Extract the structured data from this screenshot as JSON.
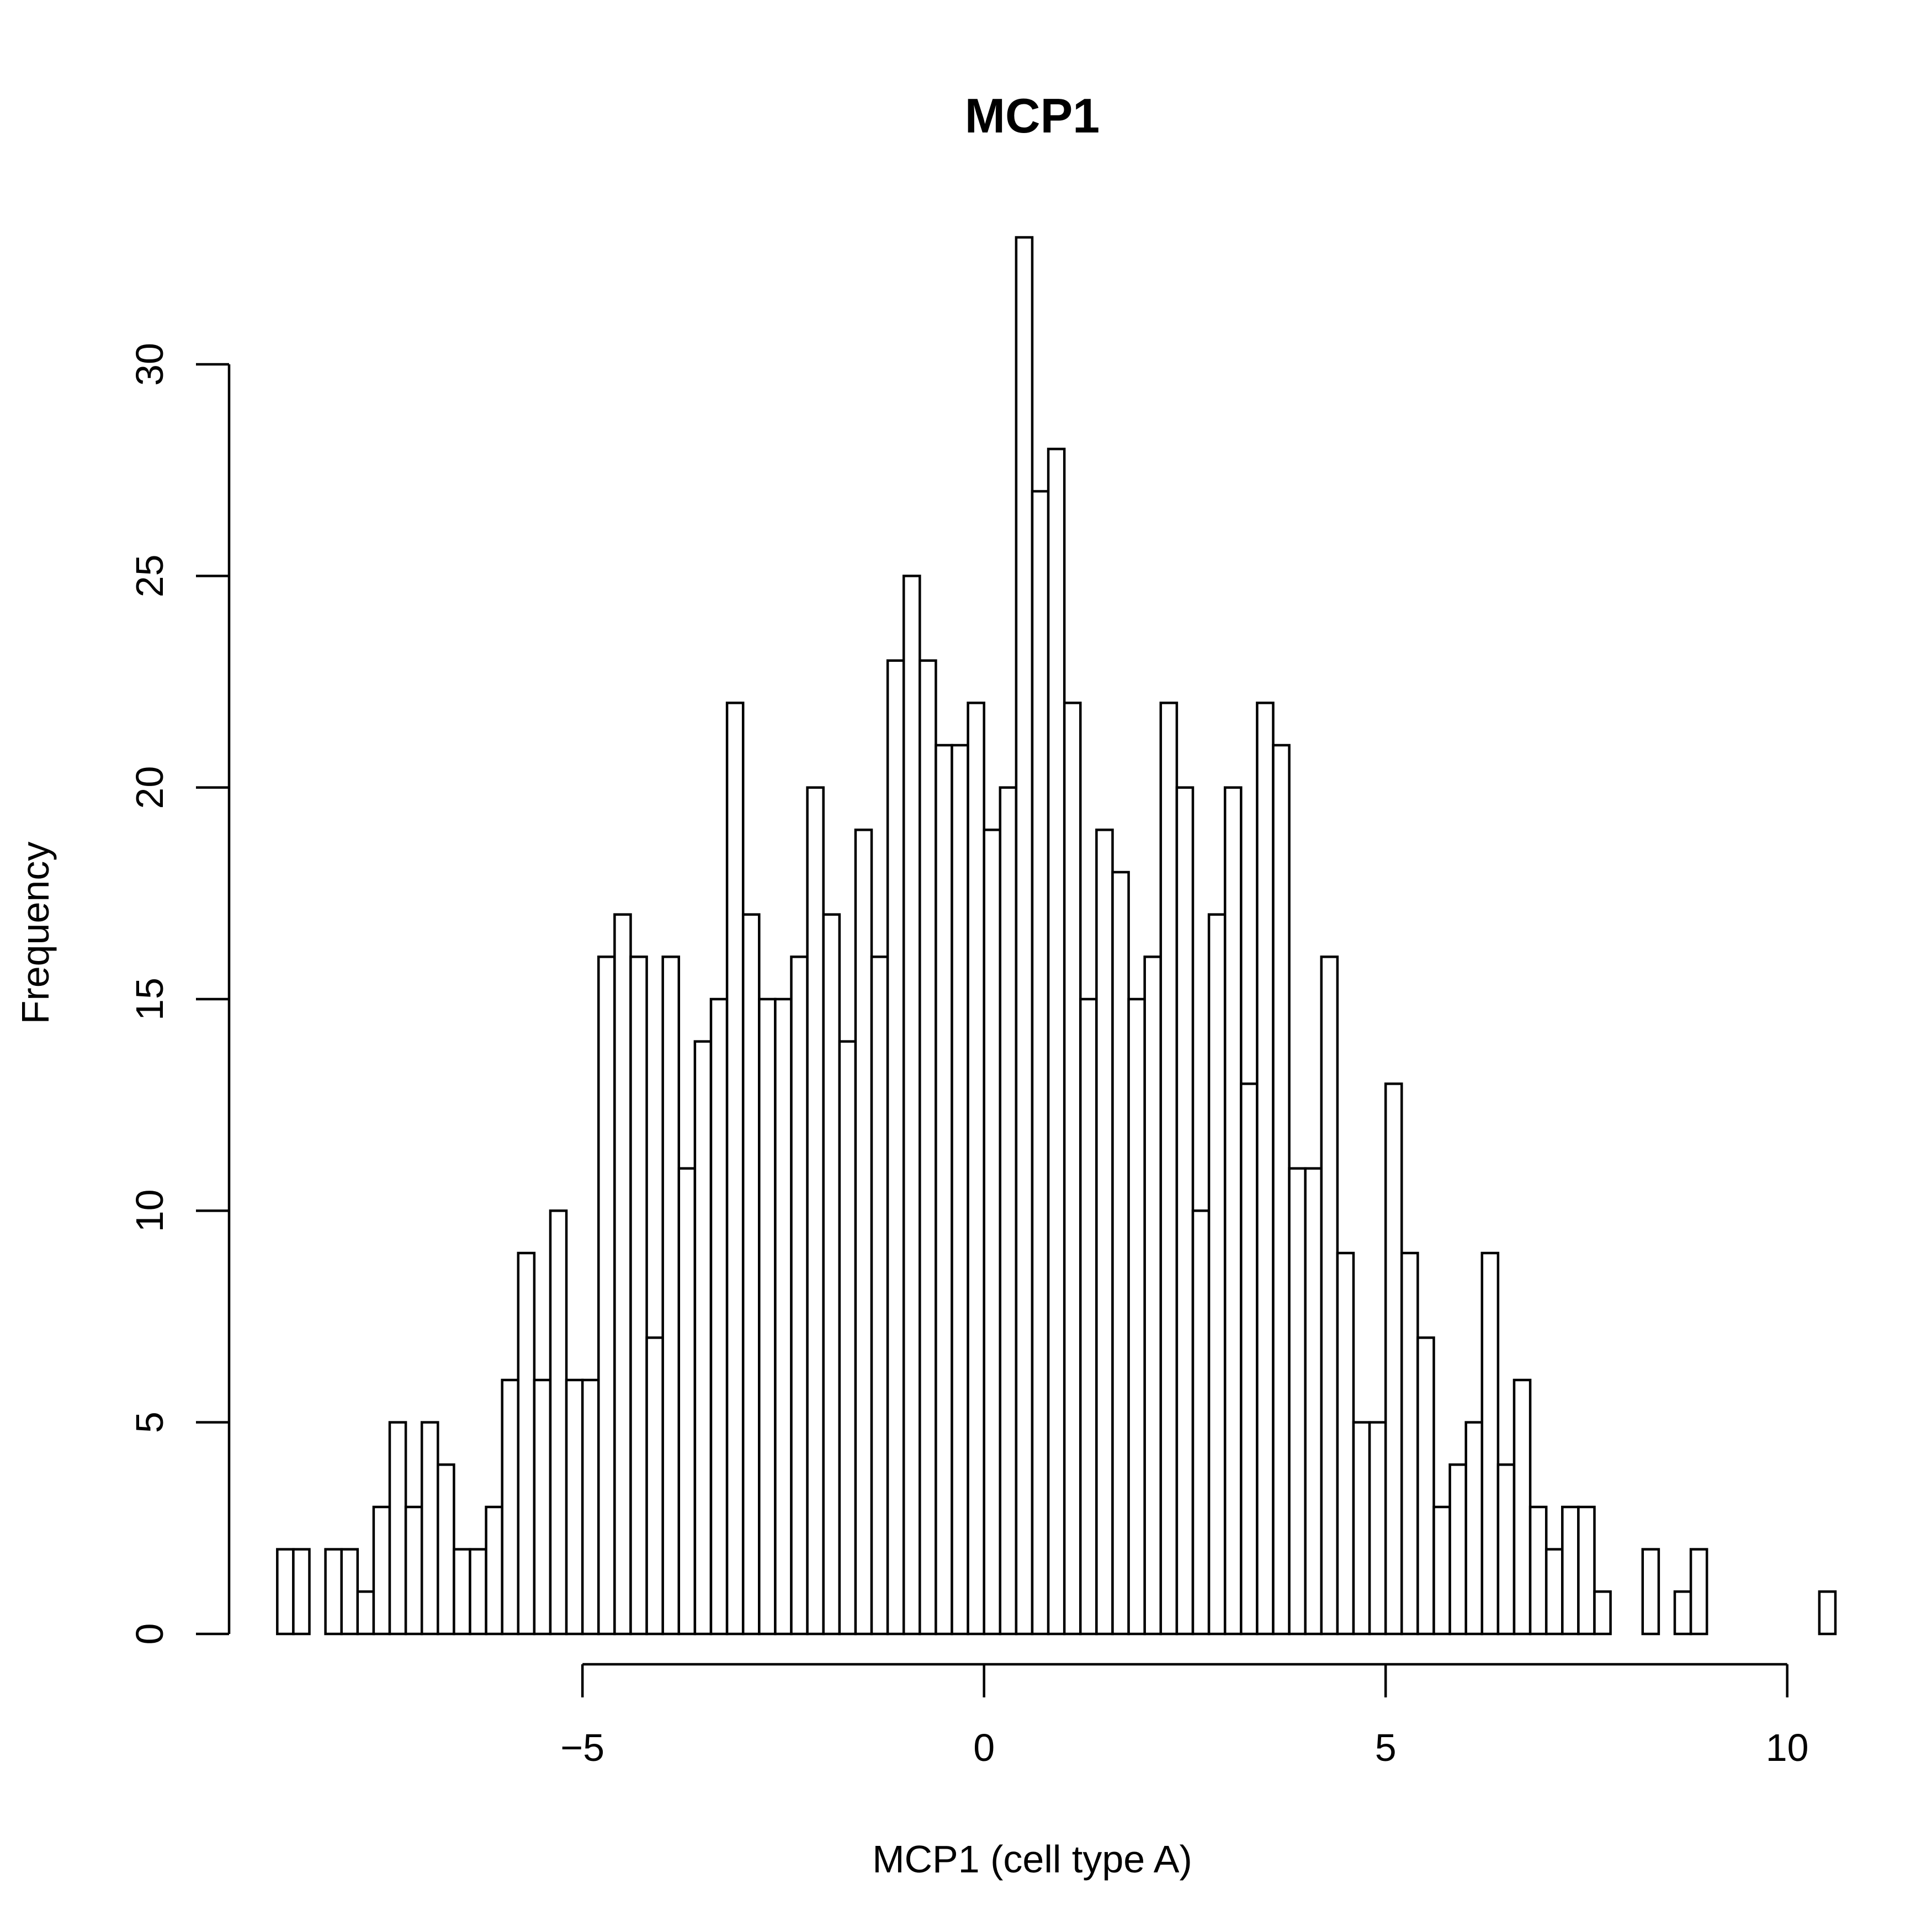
{
  "chart_data": {
    "type": "bar",
    "title": "MCP1",
    "xlabel": "MCP1 (cell type A)",
    "ylabel": "Frequency",
    "x_ticks": [
      -5,
      0,
      5,
      10
    ],
    "x_tick_labels": [
      "−5",
      "0",
      "5",
      "10"
    ],
    "y_ticks": [
      0,
      5,
      10,
      15,
      20,
      25,
      30
    ],
    "y_tick_labels": [
      "0",
      "5",
      "10",
      "15",
      "20",
      "25",
      "30"
    ],
    "xlim": [
      -9.4,
      10.6
    ],
    "ylim": [
      0,
      33
    ],
    "bin_width": 0.2,
    "x_start": -8.8,
    "values": [
      2,
      2,
      0,
      2,
      2,
      1,
      3,
      5,
      3,
      5,
      4,
      2,
      2,
      3,
      6,
      9,
      6,
      10,
      6,
      6,
      16,
      17,
      16,
      7,
      16,
      11,
      14,
      15,
      22,
      17,
      15,
      15,
      16,
      20,
      17,
      14,
      19,
      16,
      23,
      25,
      23,
      21,
      21,
      22,
      19,
      20,
      33,
      27,
      28,
      22,
      15,
      19,
      18,
      15,
      16,
      22,
      20,
      10,
      17,
      20,
      13,
      22,
      21,
      11,
      11,
      16,
      9,
      5,
      5,
      13,
      9,
      7,
      3,
      4,
      5,
      9,
      4,
      6,
      3,
      2,
      3,
      3,
      1,
      0,
      0,
      2,
      0,
      1,
      2,
      0,
      0,
      0,
      0,
      0,
      0,
      0,
      1
    ],
    "grid": false,
    "colors": {
      "bar_fill": "#ffffff",
      "bar_stroke": "#000000"
    }
  }
}
